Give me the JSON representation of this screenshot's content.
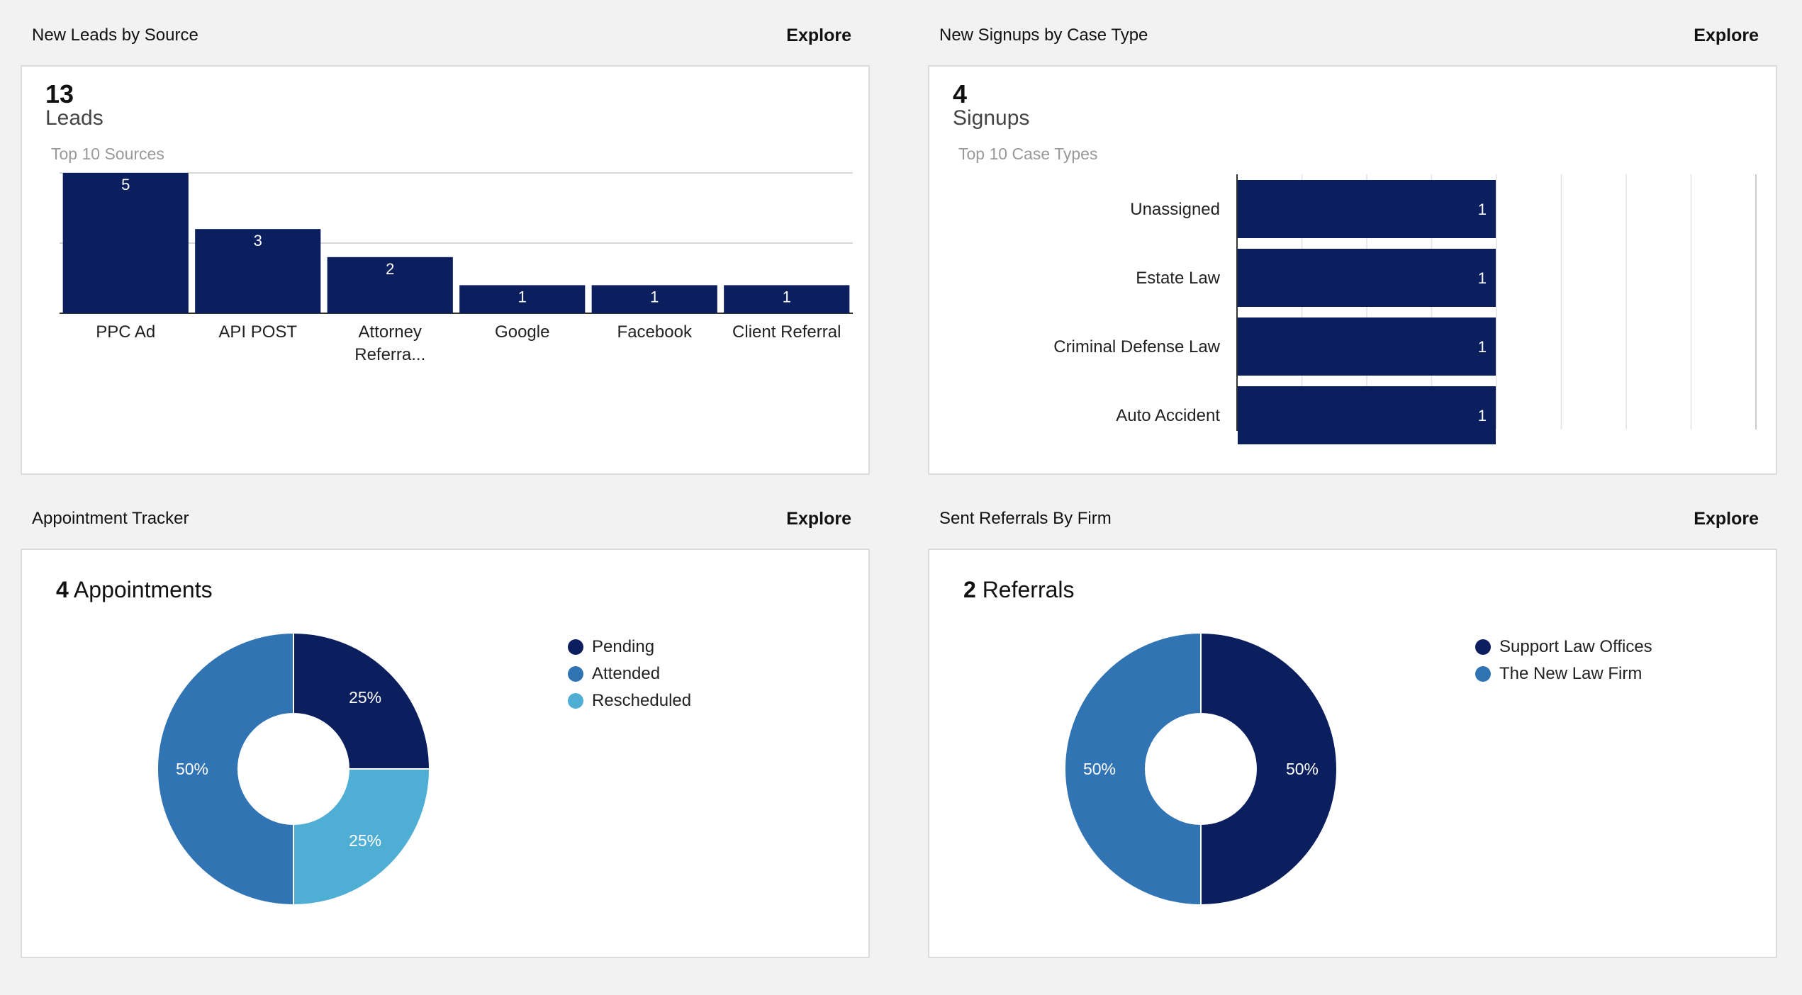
{
  "colors": {
    "navy": "#0b1f5e",
    "blue": "#3174b4",
    "light": "#4eaed3"
  },
  "panels": {
    "leads": {
      "title": "New Leads by Source",
      "explore": "Explore",
      "count": "13",
      "unit": "Leads",
      "subtitle": "Top 10 Sources"
    },
    "signups": {
      "title": "New Signups by Case Type",
      "explore": "Explore",
      "count": "4",
      "unit": "Signups",
      "subtitle": "Top 10 Case Types"
    },
    "appointments": {
      "title": "Appointment Tracker",
      "explore": "Explore",
      "count": "4",
      "unit": "Appointments",
      "legend": [
        "Pending",
        "Attended",
        "Rescheduled"
      ]
    },
    "referrals": {
      "title": "Sent Referrals By Firm",
      "explore": "Explore",
      "count": "2",
      "unit": "Referrals",
      "legend": [
        "Support Law Offices",
        "The New Law Firm"
      ]
    }
  },
  "chart_data": [
    {
      "type": "bar",
      "categories": [
        "PPC Ad",
        "API POST",
        "Attorney Referra...",
        "Google",
        "Facebook",
        "Client Referral"
      ],
      "values": [
        5,
        3,
        2,
        1,
        1,
        1
      ],
      "ylim": [
        0,
        5
      ],
      "grid": true
    },
    {
      "type": "bar",
      "orientation": "horizontal",
      "categories": [
        "Unassigned",
        "Estate Law",
        "Criminal Defense Law",
        "Auto Accident"
      ],
      "values": [
        1,
        1,
        1,
        1
      ],
      "grid": true
    },
    {
      "type": "pie",
      "donut": true,
      "categories": [
        "Pending",
        "Rescheduled",
        "Attended"
      ],
      "values": [
        25,
        25,
        50
      ],
      "labels": [
        "25%",
        "25%",
        "50%"
      ]
    },
    {
      "type": "pie",
      "donut": true,
      "categories": [
        "Support Law Offices",
        "The New Law Firm"
      ],
      "values": [
        50,
        50
      ],
      "labels": [
        "50%",
        "50%"
      ]
    }
  ]
}
